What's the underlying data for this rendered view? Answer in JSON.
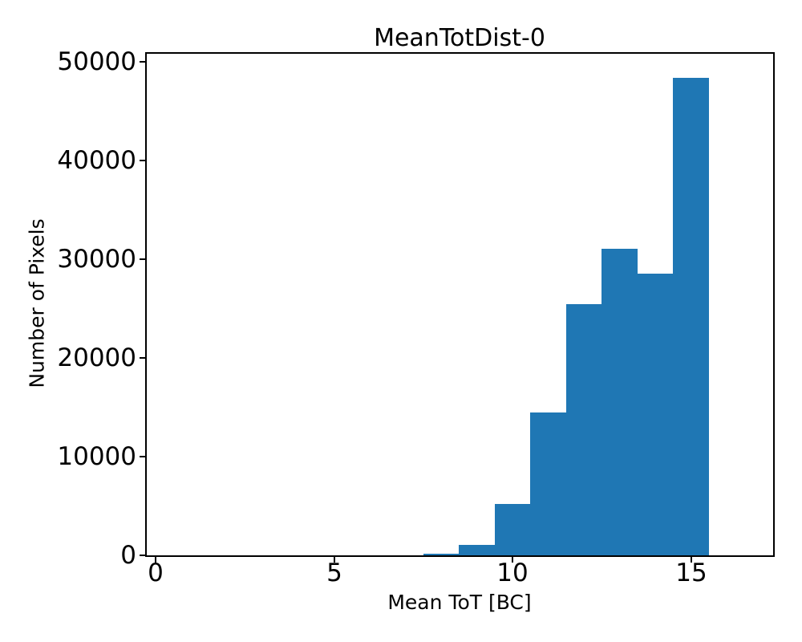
{
  "figure": {
    "background": "#ffffff",
    "text_color": "#000000",
    "spine_color": "#000000"
  },
  "chart_data": {
    "type": "bar",
    "title": "MeanTotDist-0",
    "xlabel": "Mean ToT [BC]",
    "ylabel": "Number of Pixels",
    "bar_color": "#1f77b4",
    "bin_edges": [
      7.5,
      8.5,
      9.5,
      10.5,
      11.5,
      12.5,
      13.5,
      14.5,
      15.5
    ],
    "bin_centers": [
      8,
      9,
      10,
      11,
      12,
      13,
      14,
      15
    ],
    "values": [
      160,
      1100,
      5200,
      14450,
      25450,
      31050,
      28500,
      48350
    ],
    "xlim": [
      -0.25,
      17.3
    ],
    "ylim": [
      0,
      50800
    ],
    "xticks": {
      "values": [
        0,
        5,
        10,
        15
      ],
      "labels": [
        "0",
        "5",
        "10",
        "15"
      ]
    },
    "yticks": {
      "values": [
        0,
        10000,
        20000,
        30000,
        40000,
        50000
      ],
      "labels": [
        "0",
        "10000",
        "20000",
        "30000",
        "40000",
        "50000"
      ]
    },
    "grid": false,
    "legend": false
  }
}
